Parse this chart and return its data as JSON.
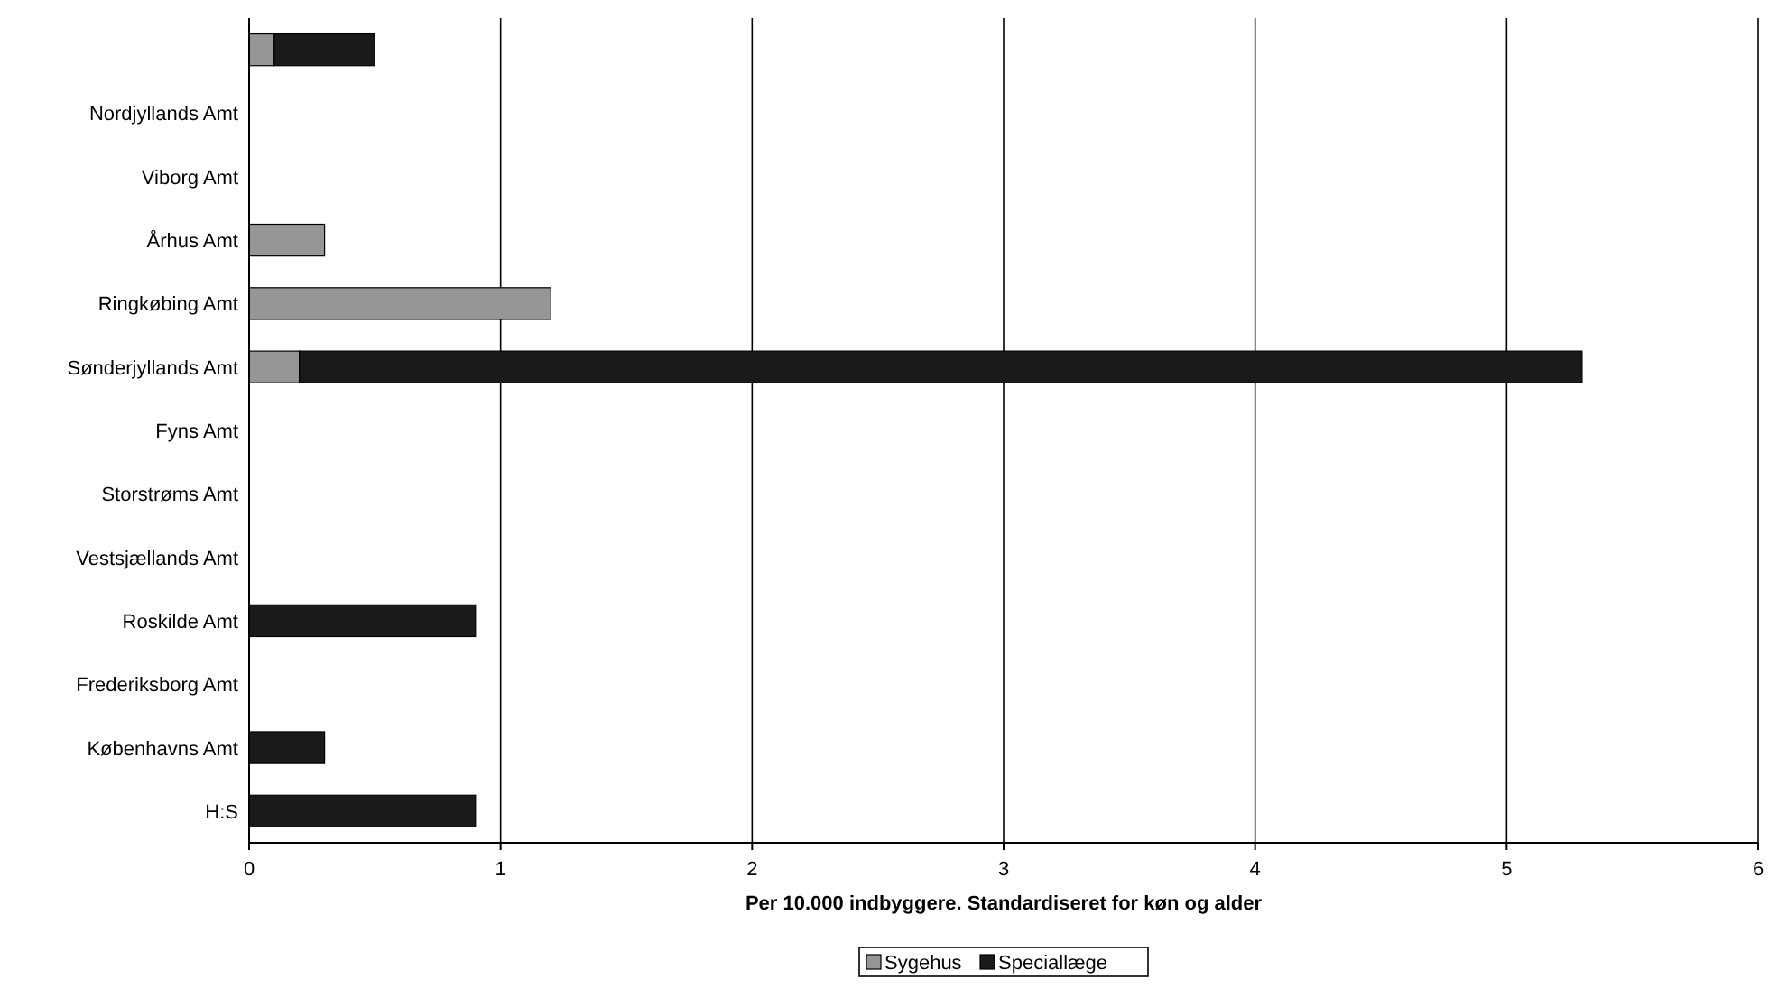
{
  "chart_data": {
    "type": "bar",
    "orientation": "horizontal",
    "stacked": true,
    "xlabel": "Per 10.000 indbyggere. Standardiseret for køn og alder",
    "categories": [
      null,
      "Nordjyllands Amt",
      "Viborg Amt",
      "Århus Amt",
      "Ringkøbing Amt",
      "Sønderjyllands Amt",
      "Fyns Amt",
      "Storstrøms Amt",
      "Vestsjællands Amt",
      "Roskilde Amt",
      "Frederiksborg Amt",
      "Københavns Amt",
      "H:S"
    ],
    "series": [
      {
        "name": "Sygehus",
        "color": "#969696",
        "values": [
          0.1,
          0,
          0,
          0.3,
          1.2,
          0.2,
          0,
          0,
          0,
          0,
          0,
          0,
          0
        ]
      },
      {
        "name": "Speciallæge",
        "color": "#1a1a1a",
        "values": [
          0.4,
          0,
          0,
          0,
          0,
          5.1,
          0,
          0,
          0,
          0.9,
          0,
          0.3,
          0.9
        ]
      }
    ],
    "xlim": [
      0,
      6
    ],
    "xticks": [
      0,
      1,
      2,
      3,
      4,
      5,
      6
    ],
    "grid": "x",
    "legend": "bottom"
  }
}
